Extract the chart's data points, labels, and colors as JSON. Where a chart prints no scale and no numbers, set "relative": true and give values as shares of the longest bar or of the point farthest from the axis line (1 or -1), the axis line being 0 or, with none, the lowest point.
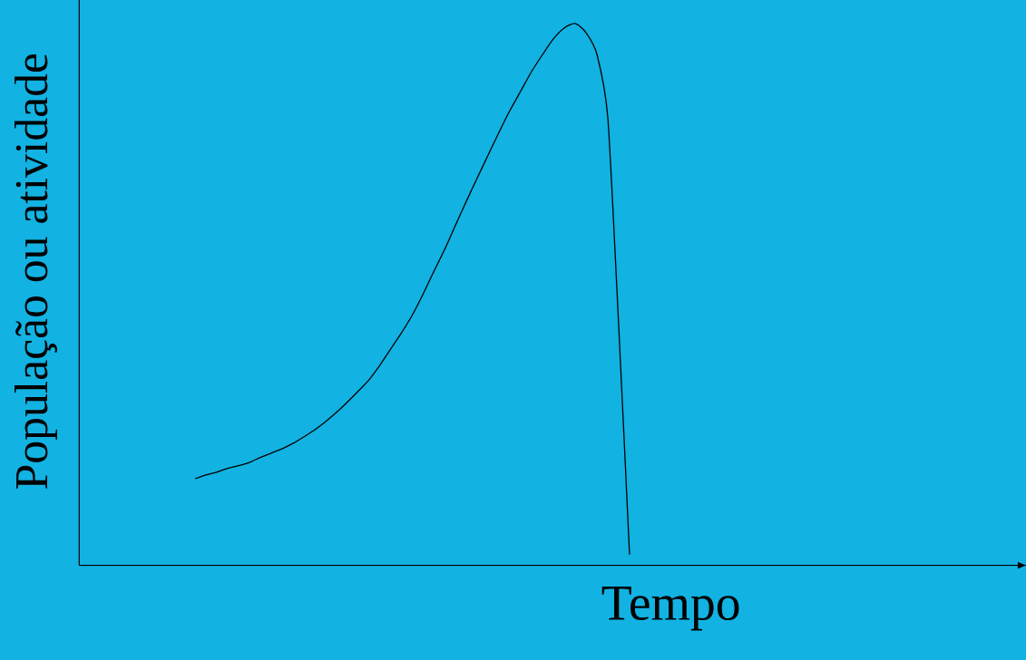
{
  "chart_data": {
    "type": "line",
    "relative": true,
    "xlabel": "Tempo",
    "ylabel": "População ou atividade",
    "categories": [
      null,
      null,
      null,
      null,
      null,
      null,
      null,
      null,
      null,
      null,
      null,
      null,
      null,
      null,
      null,
      null,
      null,
      null,
      null,
      null,
      null,
      null,
      null,
      null,
      null,
      null,
      null,
      null,
      null,
      null,
      null,
      null,
      null,
      null,
      null,
      null,
      null,
      null,
      null,
      null,
      null
    ],
    "values": [
      0.16,
      0.167,
      0.172,
      0.179,
      0.184,
      0.19,
      0.199,
      0.207,
      0.215,
      0.225,
      0.237,
      0.25,
      0.265,
      0.282,
      0.301,
      0.321,
      0.342,
      0.369,
      0.399,
      0.429,
      0.462,
      0.501,
      0.543,
      0.584,
      0.629,
      0.673,
      0.716,
      0.758,
      0.8,
      0.84,
      0.876,
      0.912,
      0.943,
      0.972,
      0.992,
      1.0,
      0.983,
      0.943,
      0.826,
      0.442,
      0.02
    ],
    "color": "#000000",
    "marker": "none"
  }
}
